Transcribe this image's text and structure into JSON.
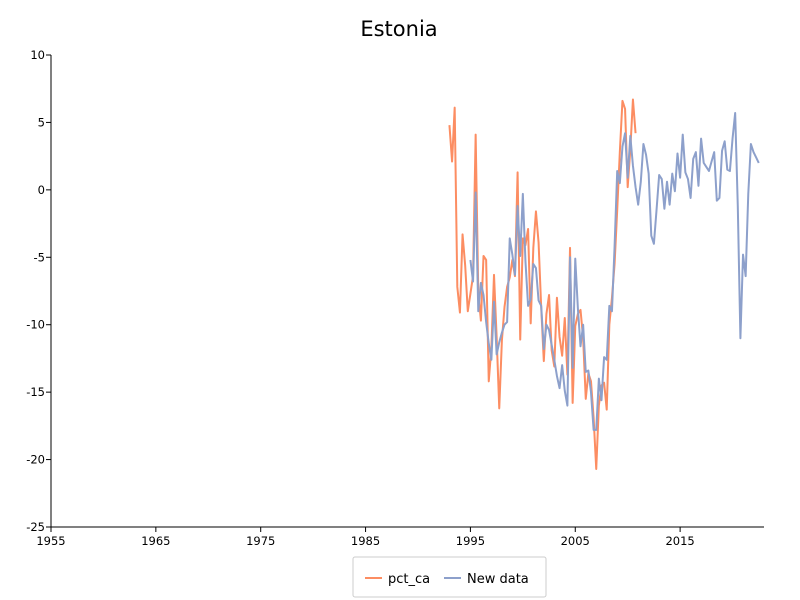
{
  "chart_data": {
    "type": "line",
    "title": "Estonia",
    "xlabel": "",
    "ylabel": "",
    "xlim": [
      1955,
      2023
    ],
    "ylim": [
      -25,
      10
    ],
    "x_ticks": [
      1955,
      1965,
      1975,
      1985,
      1995,
      2005,
      2015
    ],
    "y_ticks": [
      10,
      5,
      0,
      -5,
      -10,
      -15,
      -20,
      -25
    ],
    "grid": false,
    "legend_position": "bottom-center",
    "series": [
      {
        "name": "pct_ca",
        "color": "#fc8d62",
        "points": [
          [
            1993.0,
            4.8
          ],
          [
            1993.25,
            2.1
          ],
          [
            1993.5,
            6.1
          ],
          [
            1993.75,
            -7.2
          ],
          [
            1994.0,
            -9.1
          ],
          [
            1994.25,
            -3.3
          ],
          [
            1994.5,
            -5.6
          ],
          [
            1994.75,
            -9.0
          ],
          [
            1995.0,
            -7.7
          ],
          [
            1995.25,
            -6.4
          ],
          [
            1995.5,
            4.1
          ],
          [
            1995.75,
            -7.6
          ],
          [
            1996.0,
            -9.7
          ],
          [
            1996.25,
            -4.9
          ],
          [
            1996.5,
            -5.2
          ],
          [
            1996.75,
            -14.2
          ],
          [
            1997.0,
            -11.7
          ],
          [
            1997.25,
            -6.3
          ],
          [
            1997.5,
            -10.9
          ],
          [
            1997.75,
            -16.2
          ],
          [
            1998.0,
            -11.2
          ],
          [
            1998.25,
            -8.7
          ],
          [
            1998.5,
            -7.2
          ],
          [
            1998.75,
            -6.5
          ],
          [
            1999.0,
            -5.2
          ],
          [
            1999.25,
            -6.4
          ],
          [
            1999.5,
            1.3
          ],
          [
            1999.75,
            -11.1
          ],
          [
            2000.0,
            -3.6
          ],
          [
            2000.25,
            -4.1
          ],
          [
            2000.5,
            -2.9
          ],
          [
            2000.75,
            -9.9
          ],
          [
            2001.0,
            -4.3
          ],
          [
            2001.25,
            -1.6
          ],
          [
            2001.5,
            -3.9
          ],
          [
            2001.75,
            -8.7
          ],
          [
            2002.0,
            -12.7
          ],
          [
            2002.25,
            -9.2
          ],
          [
            2002.5,
            -7.8
          ],
          [
            2002.75,
            -11.9
          ],
          [
            2003.0,
            -13.1
          ],
          [
            2003.25,
            -8.0
          ],
          [
            2003.5,
            -10.9
          ],
          [
            2003.75,
            -12.3
          ],
          [
            2004.0,
            -9.5
          ],
          [
            2004.25,
            -13.7
          ],
          [
            2004.5,
            -4.3
          ],
          [
            2004.75,
            -15.8
          ],
          [
            2005.0,
            -10.1
          ],
          [
            2005.25,
            -9.2
          ],
          [
            2005.5,
            -8.9
          ],
          [
            2005.75,
            -11.0
          ],
          [
            2006.0,
            -15.5
          ],
          [
            2006.25,
            -13.6
          ],
          [
            2006.5,
            -14.2
          ],
          [
            2006.75,
            -16.9
          ],
          [
            2007.0,
            -20.7
          ],
          [
            2007.25,
            -16.0
          ],
          [
            2007.5,
            -14.5
          ],
          [
            2007.75,
            -14.3
          ],
          [
            2008.0,
            -16.3
          ],
          [
            2008.25,
            -10.0
          ],
          [
            2008.5,
            -8.0
          ],
          [
            2008.75,
            -5.5
          ],
          [
            2009.0,
            -1.5
          ],
          [
            2009.25,
            2.8
          ],
          [
            2009.5,
            6.6
          ],
          [
            2009.75,
            6.0
          ],
          [
            2010.0,
            0.2
          ],
          [
            2010.25,
            3.0
          ],
          [
            2010.5,
            6.7
          ],
          [
            2010.75,
            4.2
          ]
        ]
      },
      {
        "name": "New data",
        "color": "#8da0cb",
        "points": [
          [
            1995.0,
            -5.2
          ],
          [
            1995.25,
            -6.8
          ],
          [
            1995.5,
            -0.2
          ],
          [
            1995.75,
            -9.0
          ],
          [
            1996.0,
            -6.9
          ],
          [
            1996.25,
            -7.8
          ],
          [
            1996.5,
            -9.8
          ],
          [
            1996.75,
            -11.4
          ],
          [
            1997.0,
            -12.6
          ],
          [
            1997.25,
            -8.3
          ],
          [
            1997.5,
            -12.2
          ],
          [
            1997.75,
            -11.3
          ],
          [
            1998.0,
            -10.6
          ],
          [
            1998.25,
            -10.0
          ],
          [
            1998.5,
            -9.8
          ],
          [
            1998.75,
            -3.6
          ],
          [
            1999.0,
            -4.8
          ],
          [
            1999.25,
            -6.3
          ],
          [
            1999.5,
            -1.2
          ],
          [
            1999.75,
            -4.9
          ],
          [
            2000.0,
            -0.3
          ],
          [
            2000.25,
            -5.3
          ],
          [
            2000.5,
            -8.6
          ],
          [
            2000.75,
            -8.1
          ],
          [
            2001.0,
            -5.5
          ],
          [
            2001.25,
            -5.8
          ],
          [
            2001.5,
            -8.2
          ],
          [
            2001.75,
            -8.6
          ],
          [
            2002.0,
            -11.8
          ],
          [
            2002.25,
            -10.0
          ],
          [
            2002.5,
            -10.4
          ],
          [
            2002.75,
            -11.5
          ],
          [
            2003.0,
            -12.6
          ],
          [
            2003.25,
            -13.8
          ],
          [
            2003.5,
            -14.7
          ],
          [
            2003.75,
            -13.0
          ],
          [
            2004.0,
            -14.9
          ],
          [
            2004.25,
            -16.0
          ],
          [
            2004.5,
            -5.0
          ],
          [
            2004.75,
            -13.2
          ],
          [
            2005.0,
            -5.1
          ],
          [
            2005.25,
            -8.8
          ],
          [
            2005.5,
            -11.6
          ],
          [
            2005.75,
            -10.0
          ],
          [
            2006.0,
            -13.5
          ],
          [
            2006.25,
            -13.4
          ],
          [
            2006.5,
            -15.0
          ],
          [
            2006.75,
            -17.8
          ],
          [
            2007.0,
            -17.8
          ],
          [
            2007.25,
            -14.0
          ],
          [
            2007.5,
            -15.6
          ],
          [
            2007.75,
            -12.4
          ],
          [
            2008.0,
            -12.6
          ],
          [
            2008.25,
            -8.6
          ],
          [
            2008.5,
            -9.0
          ],
          [
            2008.75,
            -4.2
          ],
          [
            2009.0,
            1.4
          ],
          [
            2009.25,
            0.5
          ],
          [
            2009.5,
            3.2
          ],
          [
            2009.75,
            4.2
          ],
          [
            2010.0,
            0.9
          ],
          [
            2010.25,
            4.0
          ],
          [
            2010.5,
            1.8
          ],
          [
            2010.75,
            0.2
          ],
          [
            2011.0,
            -1.1
          ],
          [
            2011.25,
            0.6
          ],
          [
            2011.5,
            3.4
          ],
          [
            2011.75,
            2.6
          ],
          [
            2012.0,
            1.2
          ],
          [
            2012.25,
            -3.4
          ],
          [
            2012.5,
            -4.0
          ],
          [
            2012.75,
            -1.5
          ],
          [
            2013.0,
            1.1
          ],
          [
            2013.25,
            0.8
          ],
          [
            2013.5,
            -1.4
          ],
          [
            2013.75,
            0.6
          ],
          [
            2014.0,
            -1.1
          ],
          [
            2014.25,
            1.2
          ],
          [
            2014.5,
            -0.1
          ],
          [
            2014.75,
            2.7
          ],
          [
            2015.0,
            0.9
          ],
          [
            2015.25,
            4.1
          ],
          [
            2015.5,
            1.3
          ],
          [
            2015.75,
            0.8
          ],
          [
            2016.0,
            -0.6
          ],
          [
            2016.25,
            2.3
          ],
          [
            2016.5,
            2.8
          ],
          [
            2016.75,
            0.3
          ],
          [
            2017.0,
            3.8
          ],
          [
            2017.25,
            2.0
          ],
          [
            2017.5,
            1.7
          ],
          [
            2017.75,
            1.4
          ],
          [
            2018.0,
            2.1
          ],
          [
            2018.25,
            2.8
          ],
          [
            2018.5,
            -0.8
          ],
          [
            2018.75,
            -0.6
          ],
          [
            2019.0,
            2.9
          ],
          [
            2019.25,
            3.6
          ],
          [
            2019.5,
            1.5
          ],
          [
            2019.75,
            1.4
          ],
          [
            2020.0,
            3.8
          ],
          [
            2020.25,
            5.7
          ],
          [
            2020.5,
            -1.2
          ],
          [
            2020.75,
            -11.0
          ],
          [
            2021.0,
            -4.8
          ],
          [
            2021.25,
            -6.4
          ],
          [
            2021.5,
            -0.3
          ],
          [
            2021.75,
            3.4
          ],
          [
            2022.0,
            2.8
          ],
          [
            2022.25,
            2.4
          ],
          [
            2022.5,
            2.0
          ]
        ]
      }
    ]
  }
}
